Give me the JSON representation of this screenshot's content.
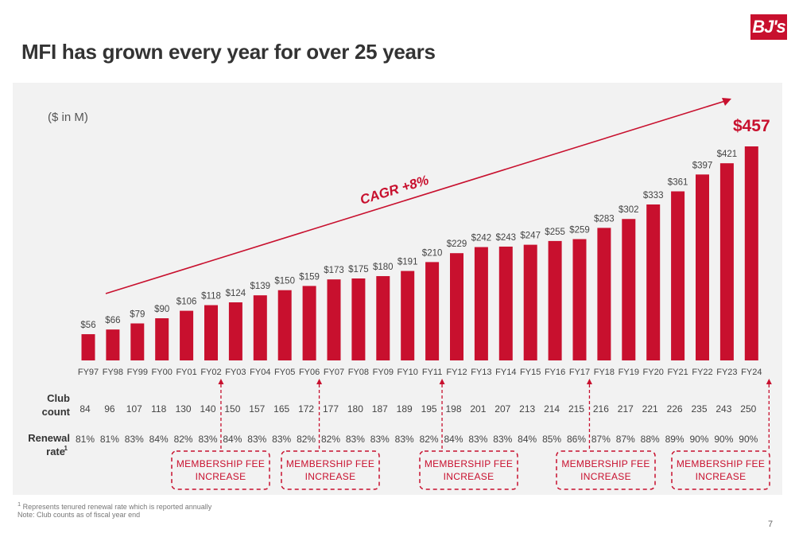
{
  "logo_text": "BJ's",
  "title": "MFI has grown every year for over 25 years",
  "chart_data": {
    "type": "bar",
    "unit_label": "($ in M)",
    "annotation": "CAGR +8%",
    "categories": [
      "FY97",
      "FY98",
      "FY99",
      "FY00",
      "FY01",
      "FY02",
      "FY03",
      "FY04",
      "FY05",
      "FY06",
      "FY07",
      "FY08",
      "FY09",
      "FY10",
      "FY11",
      "FY12",
      "FY13",
      "FY14",
      "FY15",
      "FY16",
      "FY17",
      "FY18",
      "FY19",
      "FY20",
      "FY21",
      "FY22",
      "FY23",
      "FY24"
    ],
    "values": [
      56,
      66,
      79,
      90,
      106,
      118,
      124,
      139,
      150,
      159,
      173,
      175,
      180,
      191,
      210,
      229,
      242,
      243,
      247,
      255,
      259,
      283,
      302,
      333,
      361,
      397,
      421,
      457
    ],
    "value_labels": [
      "$56",
      "$66",
      "$79",
      "$90",
      "$106",
      "$118",
      "$124",
      "$139",
      "$150",
      "$159",
      "$173",
      "$175",
      "$180",
      "$191",
      "$210",
      "$229",
      "$242",
      "$243",
      "$247",
      "$255",
      "$259",
      "$283",
      "$302",
      "$333",
      "$361",
      "$397",
      "$421",
      "$457"
    ],
    "ylim": [
      0,
      457
    ],
    "grid": false,
    "bar_color": "#c8102e"
  },
  "club_count": {
    "label_line1": "Club",
    "label_line2": "count",
    "values": [
      "84",
      "96",
      "107",
      "118",
      "130",
      "140",
      "150",
      "157",
      "165",
      "172",
      "177",
      "180",
      "187",
      "189",
      "195",
      "198",
      "201",
      "207",
      "213",
      "214",
      "215",
      "216",
      "217",
      "221",
      "226",
      "235",
      "243",
      "250"
    ]
  },
  "renewal_rate": {
    "label_line1": "Renewal",
    "label_line2": "rate",
    "label_sup": "1",
    "values": [
      "81%",
      "81%",
      "83%",
      "84%",
      "82%",
      "83%",
      "84%",
      "83%",
      "83%",
      "82%",
      "82%",
      "83%",
      "83%",
      "83%",
      "82%",
      "84%",
      "83%",
      "83%",
      "84%",
      "85%",
      "86%",
      "87%",
      "87%",
      "88%",
      "89%",
      "90%",
      "90%",
      "90%"
    ]
  },
  "fee_increases": [
    {
      "line1": "MEMBERSHIP FEE",
      "line2": "INCREASE",
      "after_category": "FY02"
    },
    {
      "line1": "MEMBERSHIP FEE",
      "line2": "INCREASE",
      "after_category": "FY06"
    },
    {
      "line1": "MEMBERSHIP FEE",
      "line2": "INCREASE",
      "after_category": "FY11"
    },
    {
      "line1": "MEMBERSHIP FEE",
      "line2": "INCREASE",
      "after_category": "FY17"
    },
    {
      "line1": "MEMBERSHIP FEE",
      "line2": "INCREASE",
      "after_category": "FY24"
    }
  ],
  "footnotes": {
    "note1_sup": "1",
    "note1": " Represents tenured renewal rate which is reported annually",
    "note2": "Note: Club counts as of fiscal year end"
  },
  "page_number": "7",
  "accent_color": "#c8102e"
}
